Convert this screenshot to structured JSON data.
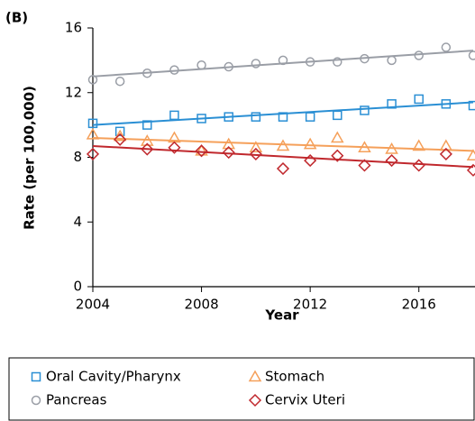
{
  "chart_data": {
    "type": "scatter",
    "panel_label": "(B)",
    "x_label": "Year",
    "y_label": "Rate (per 100,000)",
    "x": [
      2004,
      2005,
      2006,
      2007,
      2008,
      2009,
      2010,
      2011,
      2012,
      2013,
      2014,
      2015,
      2016,
      2017,
      2018
    ],
    "xlim": [
      2004,
      2018
    ],
    "xticks": [
      2004,
      2008,
      2012,
      2016
    ],
    "ylim": [
      0,
      16
    ],
    "yticks": [
      0,
      4,
      8,
      12,
      16
    ],
    "series": [
      {
        "name": "Oral Cavity/Pharynx",
        "color": "#2a8fd4",
        "marker": "square",
        "values": [
          10.1,
          9.6,
          10.0,
          10.6,
          10.4,
          10.5,
          10.5,
          10.5,
          10.5,
          10.6,
          10.9,
          11.3,
          11.6,
          11.3,
          11.2
        ],
        "trend": [
          10.0,
          11.4
        ]
      },
      {
        "name": "Stomach",
        "color": "#f5a05a",
        "marker": "triangle",
        "values": [
          9.4,
          9.3,
          9.0,
          9.2,
          8.4,
          8.8,
          8.6,
          8.7,
          8.8,
          9.2,
          8.6,
          8.5,
          8.7,
          8.7,
          8.1
        ],
        "trend": [
          9.2,
          8.4
        ]
      },
      {
        "name": "Pancreas",
        "color": "#9a9ea6",
        "marker": "circle",
        "values": [
          12.8,
          12.7,
          13.2,
          13.4,
          13.7,
          13.6,
          13.8,
          14.0,
          13.9,
          13.9,
          14.1,
          14.0,
          14.3,
          14.8,
          14.3
        ],
        "trend": [
          13.0,
          14.6
        ]
      },
      {
        "name": "Cervix Uteri",
        "color": "#c0282d",
        "marker": "diamond",
        "values": [
          8.2,
          9.1,
          8.5,
          8.6,
          8.4,
          8.3,
          8.2,
          7.3,
          7.8,
          8.1,
          7.5,
          7.8,
          7.5,
          8.2,
          7.2
        ],
        "trend": [
          8.7,
          7.4
        ]
      }
    ]
  }
}
